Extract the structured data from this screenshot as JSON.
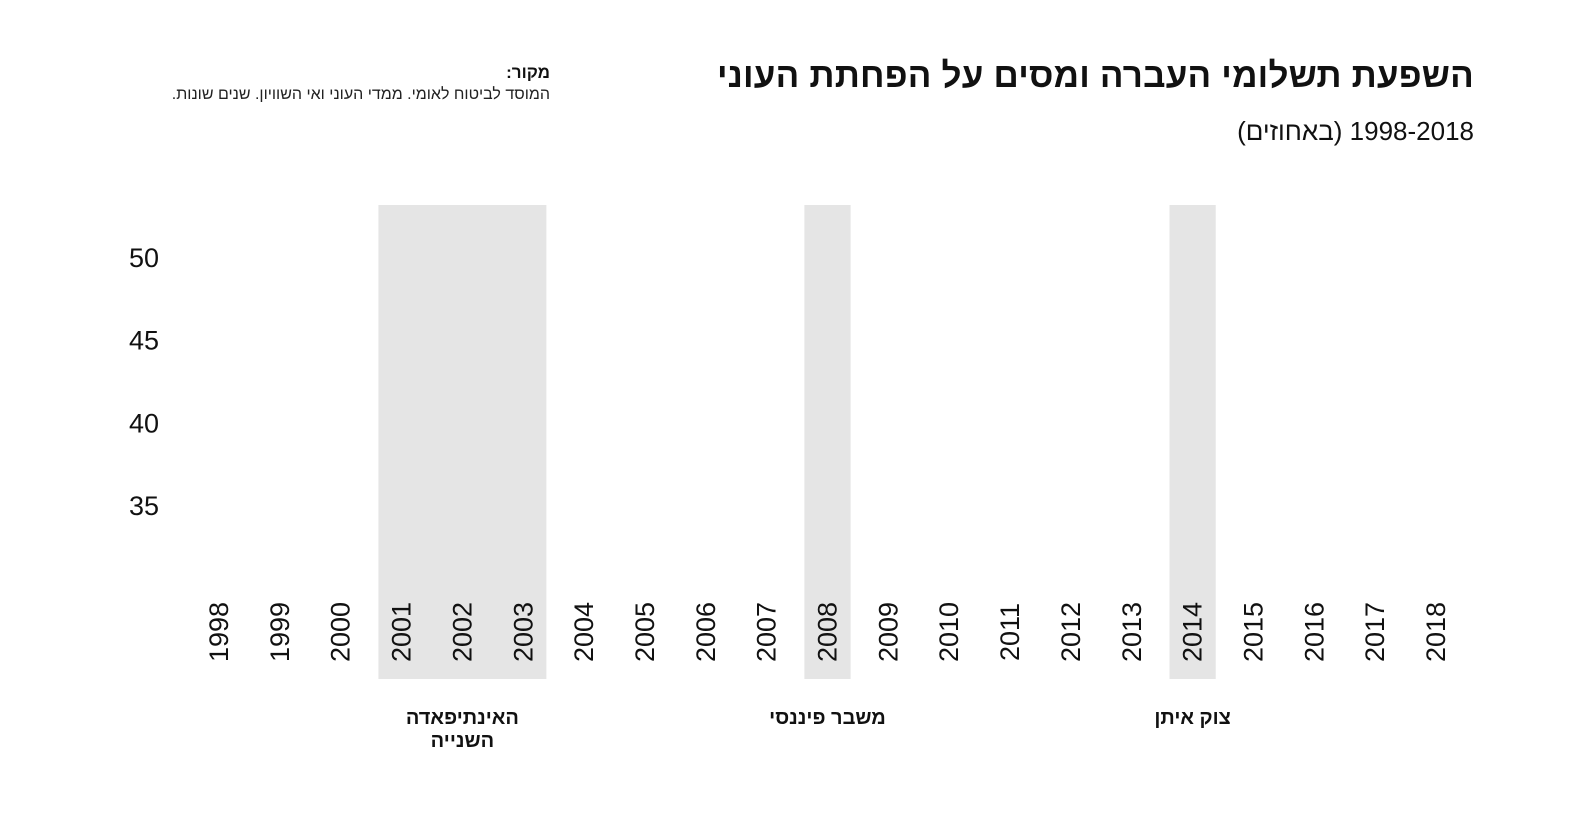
{
  "header": {
    "title": "השפעת תשלומי העברה ומסים על הפחתת העוני",
    "subtitle": "1998-2018 (באחוזים)"
  },
  "source": {
    "label": "מקור:",
    "text": "המוסד לביטוח לאומי. ממדי העוני ואי השוויון. שנים שונות."
  },
  "colors": {
    "shade": "#e5e5e5",
    "text": "#111111"
  },
  "chart_data": {
    "type": "line",
    "title": "השפעת תשלומי העברה ומסים על הפחתת העוני",
    "subtitle": "1998-2018 (באחוזים)",
    "xlabel": "",
    "ylabel": "",
    "x": [
      "1998",
      "1999",
      "2000",
      "2001",
      "2002",
      "2003",
      "2004",
      "2005",
      "2006",
      "2007",
      "2008",
      "2009",
      "2010",
      "2011",
      "2012",
      "2013",
      "2014",
      "2015",
      "2016",
      "2017",
      "2018"
    ],
    "yticks": [
      35,
      40,
      45,
      50
    ],
    "ylim": [
      30,
      53
    ],
    "grid": false,
    "legend": "none",
    "series": [],
    "shaded_periods": [
      {
        "start": "2001",
        "end": "2003",
        "label": [
          "האינתיפאדה",
          "השנייה"
        ]
      },
      {
        "start": "2008",
        "end": "2008",
        "label": [
          "משבר פיננסי"
        ]
      },
      {
        "start": "2014",
        "end": "2014",
        "label": [
          "צוק איתן"
        ]
      }
    ]
  }
}
